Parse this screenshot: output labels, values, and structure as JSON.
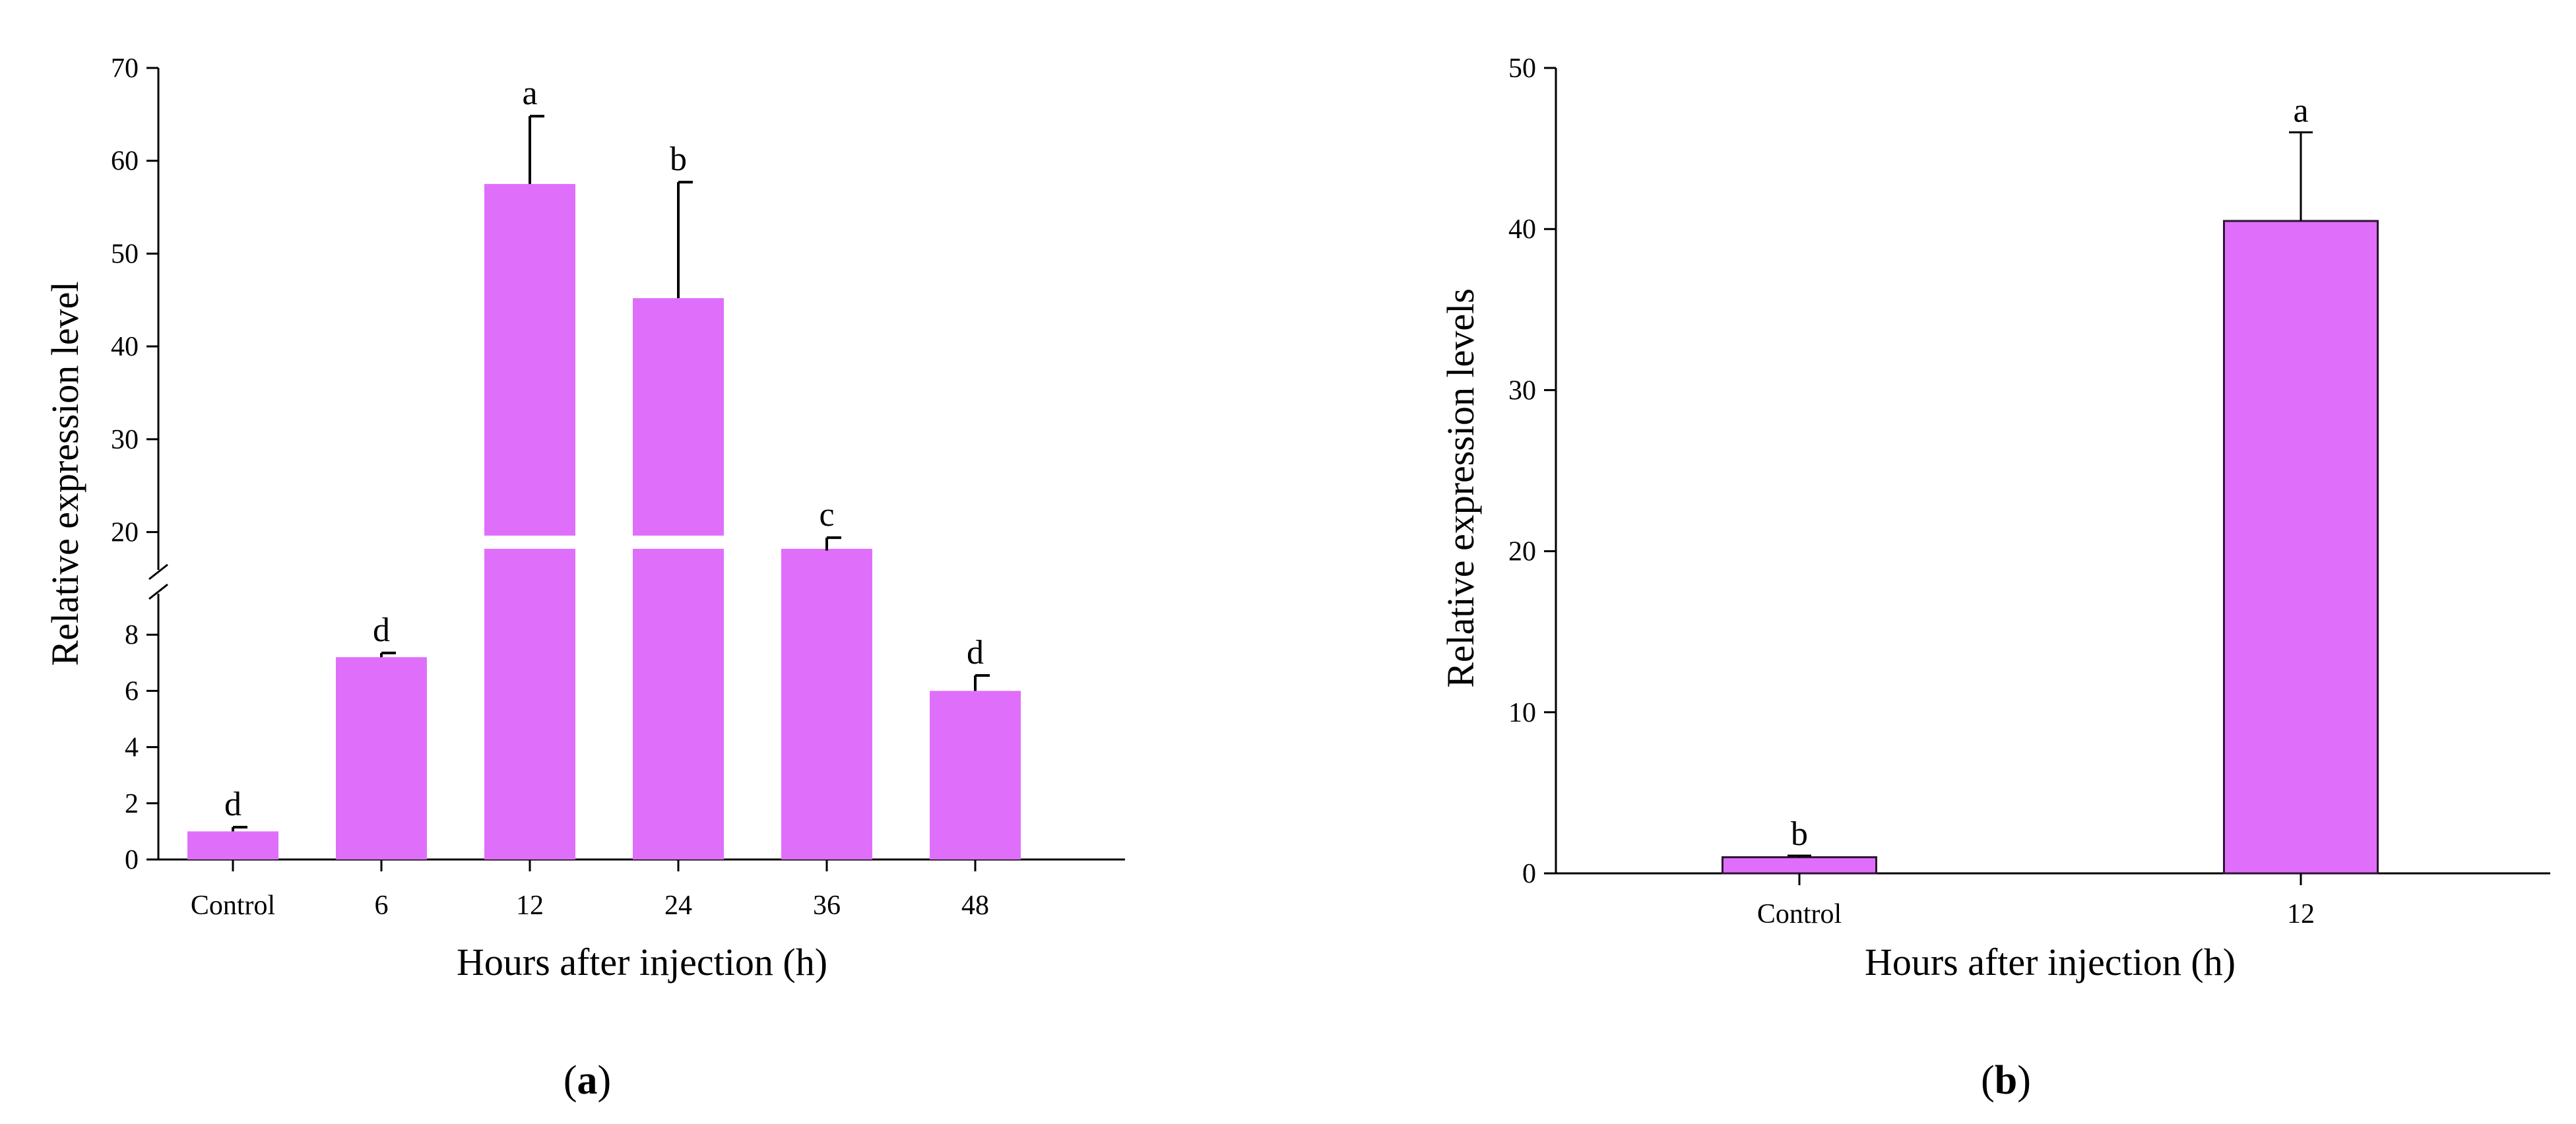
{
  "chart_data": [
    {
      "panel": "a",
      "type": "bar",
      "title": "",
      "xlabel": "Hours after injection (h)",
      "ylabel": "Relative expression level",
      "categories": [
        "Control",
        "6",
        "12",
        "24",
        "36",
        "48"
      ],
      "values": [
        1.0,
        7.2,
        57.5,
        45.2,
        18.0,
        6.0
      ],
      "errors": [
        0.15,
        0.15,
        7.3,
        12.5,
        1.4,
        0.55
      ],
      "significance": [
        "d",
        "d",
        "a",
        "b",
        "c",
        "d"
      ],
      "bar_color": "#df6ffb",
      "broken_axis": true,
      "lower_range": [
        0,
        10
      ],
      "upper_range": [
        15,
        70
      ],
      "lower_ticks": [
        0,
        2,
        4,
        6,
        8
      ],
      "upper_ticks": [
        20,
        30,
        40,
        50,
        60,
        70
      ],
      "grid": false,
      "panel_label": "a"
    },
    {
      "panel": "b",
      "type": "bar",
      "title": "",
      "xlabel": "Hours after injection (h)",
      "ylabel": "Relative expression levels",
      "categories": [
        "Control",
        "12"
      ],
      "values": [
        1.0,
        40.5
      ],
      "errors": [
        0.1,
        5.5
      ],
      "significance": [
        "b",
        "a"
      ],
      "bar_color": "#df6ffb",
      "ylim": [
        0,
        50
      ],
      "yticks": [
        0,
        10,
        20,
        30,
        40,
        50
      ],
      "grid": false,
      "panel_label": "b"
    }
  ]
}
